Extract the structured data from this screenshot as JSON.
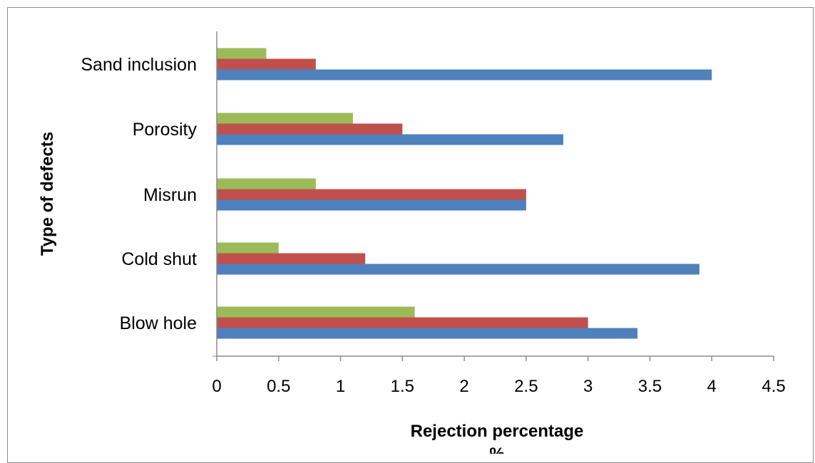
{
  "chart_data": {
    "type": "bar",
    "orientation": "horizontal",
    "title": "",
    "xlabel": "Rejection percentage",
    "xlabel_unit": "%",
    "ylabel": "Type of defects",
    "categories": [
      "Blow hole",
      "Cold shut",
      "Misrun",
      "Porosity",
      "Sand inclusion"
    ],
    "series": [
      {
        "color": "#4f81bd",
        "values": [
          3.4,
          3.9,
          2.5,
          2.8,
          4.0
        ]
      },
      {
        "color": "#c0504d",
        "values": [
          3.0,
          1.2,
          2.5,
          1.5,
          0.8
        ]
      },
      {
        "color": "#9bbb59",
        "values": [
          1.6,
          0.5,
          0.8,
          1.1,
          0.4
        ]
      }
    ],
    "xlim": [
      0,
      4.5
    ],
    "xticks": [
      "0",
      "0.5",
      "1",
      "1.5",
      "2",
      "2.5",
      "3",
      "3.5",
      "4",
      "4.5"
    ],
    "grid": false,
    "legend": "none"
  }
}
